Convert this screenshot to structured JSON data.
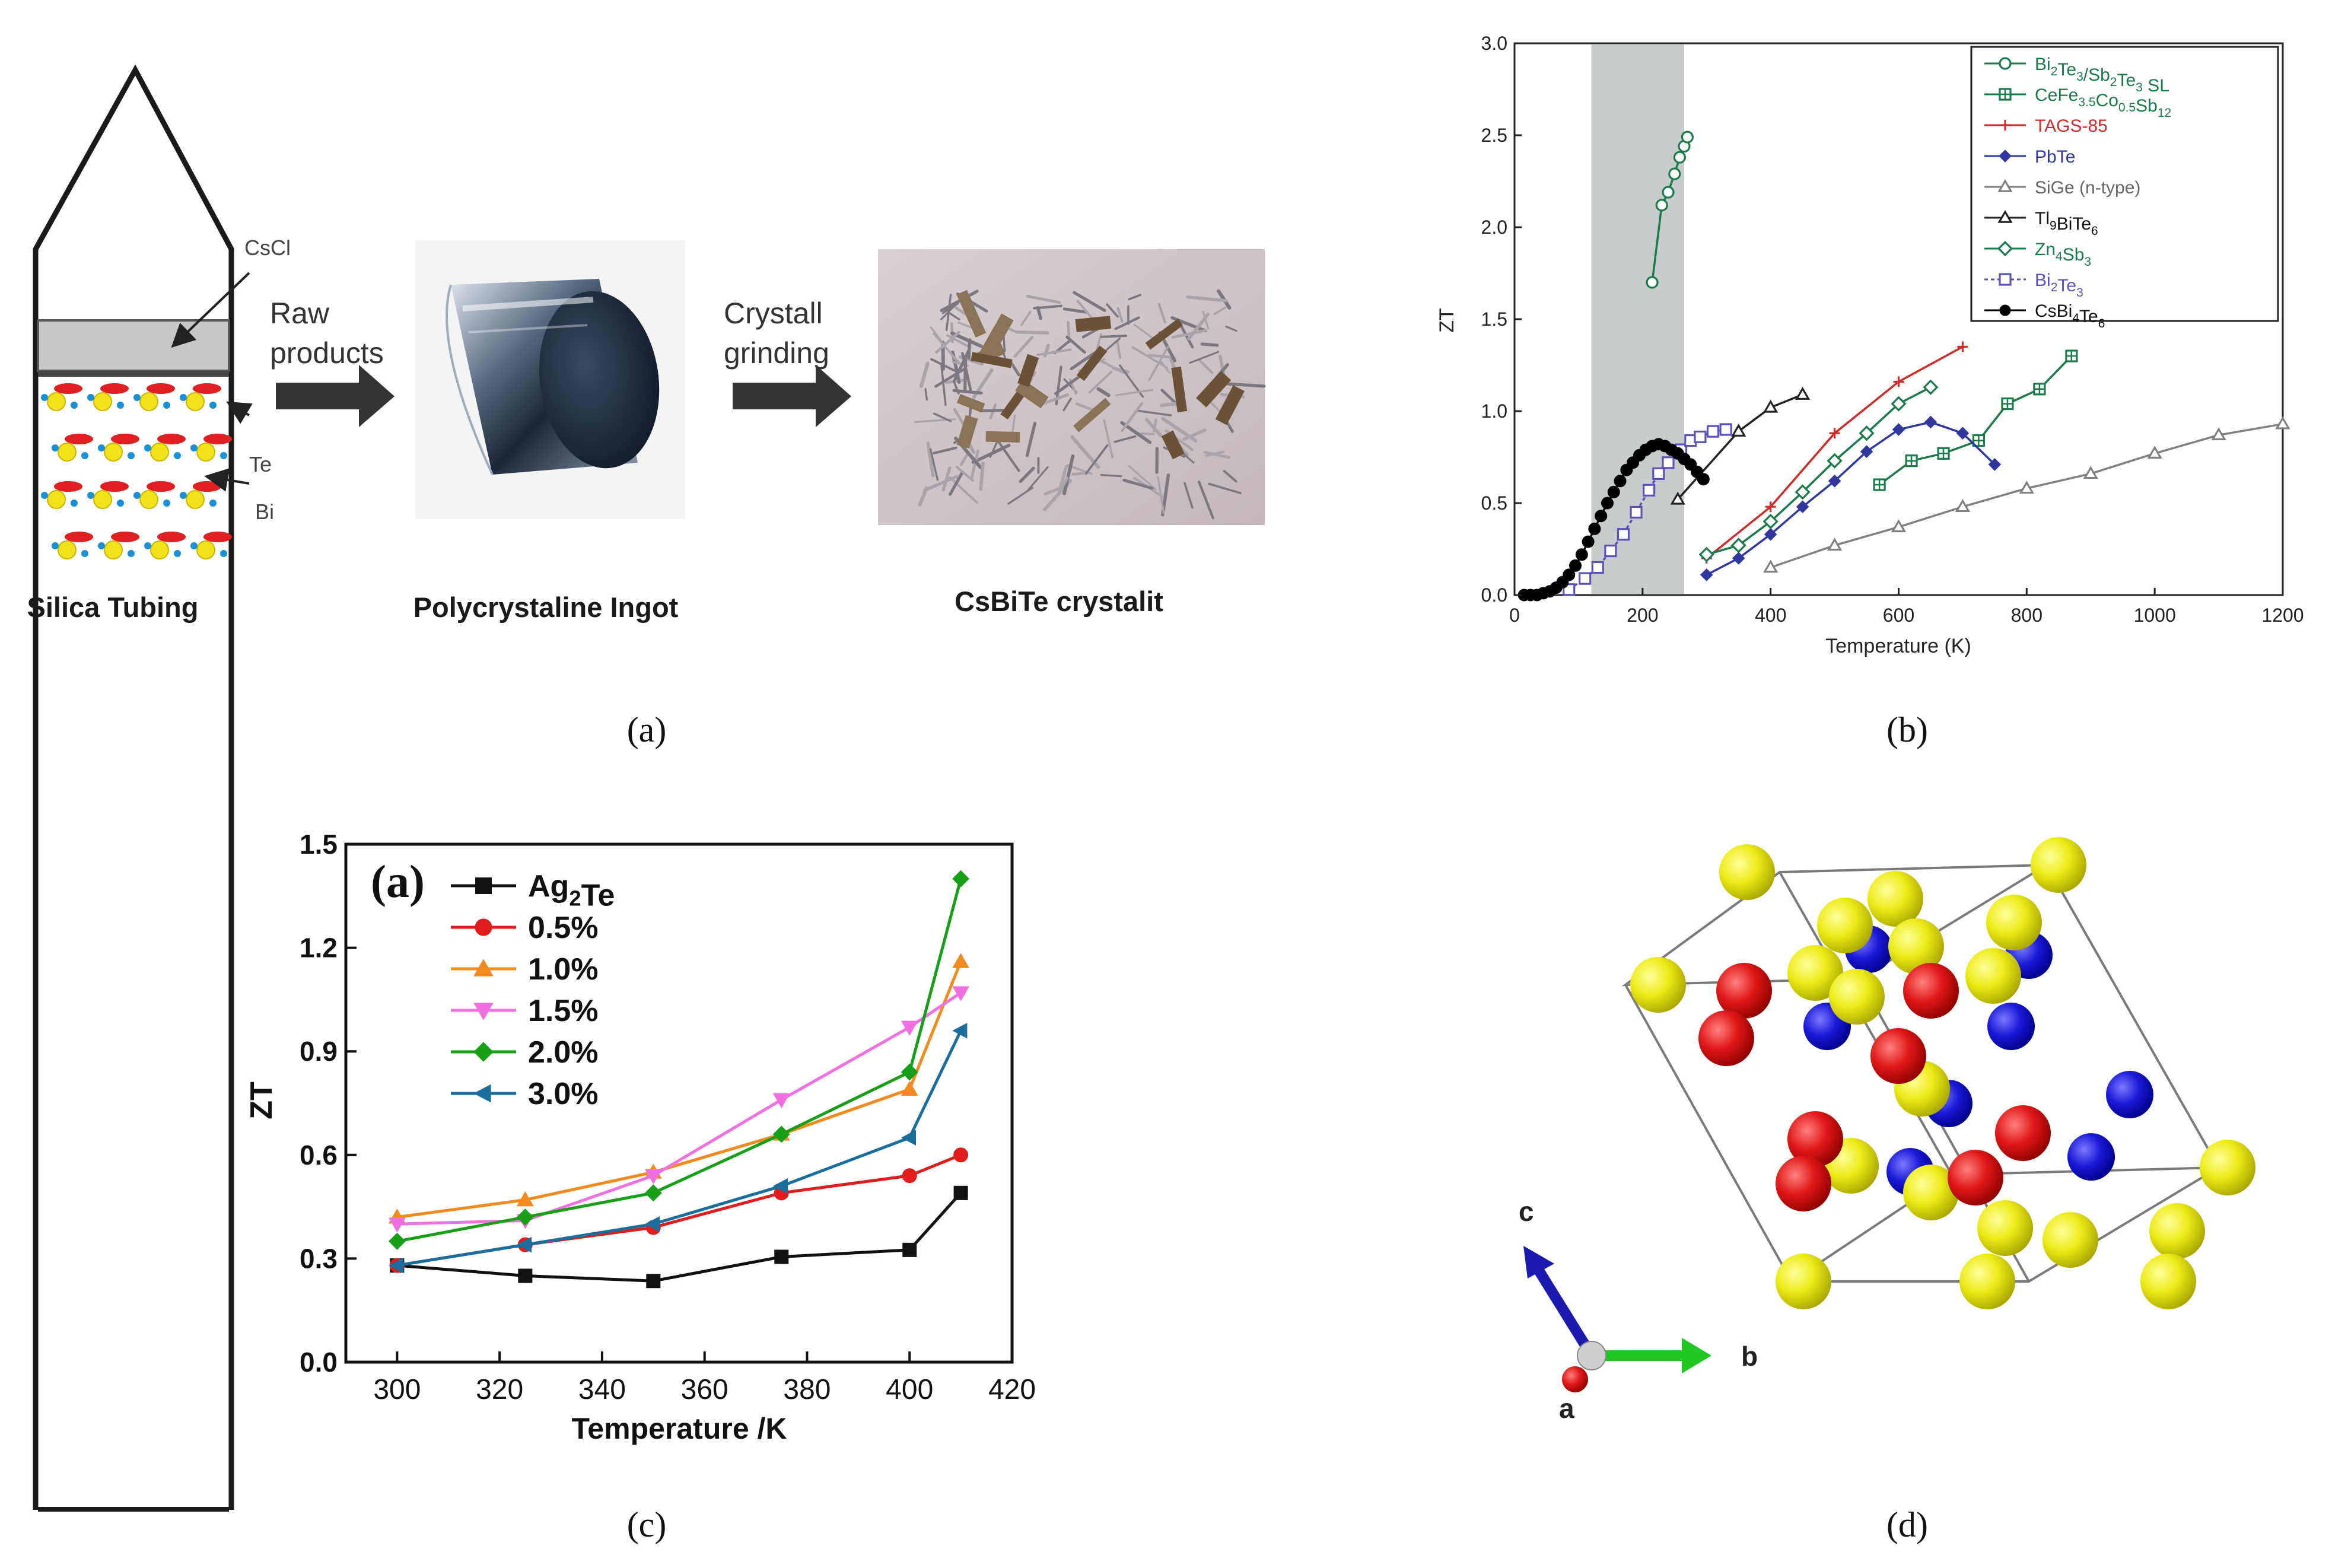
{
  "panel_labels": [
    "(a)",
    "(b)",
    "(c)",
    "(d)"
  ],
  "panel_a": {
    "texts": {
      "cscl": "CsCl",
      "te": "Te",
      "bi": "Bi",
      "arrow1_l1": "Raw",
      "arrow1_l2": "products",
      "arrow2_l1": "Crystall",
      "arrow2_l2": "grinding",
      "cap_tube": "Silica Tubing",
      "cap_ingot": "Polycrystaline Ingot",
      "cap_cryst": "CsBiTe crystalit"
    }
  },
  "panel_d": {
    "axis_labels": {
      "c": "c",
      "b": "b",
      "a": "a"
    }
  },
  "chart_data": [
    {
      "id": "b",
      "type": "line",
      "xlabel": "Temperature (K)",
      "ylabel": "ZT",
      "xlim": [
        0,
        1200
      ],
      "ylim": [
        0,
        3.0
      ],
      "xticks": [
        0,
        200,
        400,
        600,
        800,
        1000,
        1200
      ],
      "yticks": [
        0.0,
        0.5,
        1.0,
        1.5,
        2.0,
        2.5,
        3.0
      ],
      "shaded_region": [
        120,
        265
      ],
      "legend_position": "top-right",
      "series": [
        {
          "name": "Bi2Te3/Sb2Te3 SL",
          "color": "#1a7a4a",
          "marker": "circle-open",
          "points": [
            [
              215,
              1.7
            ],
            [
              230,
              2.12
            ],
            [
              240,
              2.19
            ],
            [
              250,
              2.29
            ],
            [
              258,
              2.38
            ],
            [
              265,
              2.44
            ],
            [
              270,
              2.49
            ]
          ]
        },
        {
          "name": "CeFe3.5Co0.5Sb12",
          "color": "#1a7a4a",
          "marker": "square-cross",
          "points": [
            [
              570,
              0.6
            ],
            [
              620,
              0.73
            ],
            [
              670,
              0.77
            ],
            [
              725,
              0.84
            ],
            [
              770,
              1.04
            ],
            [
              820,
              1.12
            ],
            [
              870,
              1.3
            ]
          ]
        },
        {
          "name": "TAGS-85",
          "color": "#d02b2b",
          "marker": "plus",
          "points": [
            [
              300,
              0.2
            ],
            [
              400,
              0.48
            ],
            [
              500,
              0.88
            ],
            [
              600,
              1.16
            ],
            [
              700,
              1.35
            ]
          ]
        },
        {
          "name": "PbTe",
          "color": "#3038a0",
          "marker": "diamond-filled",
          "points": [
            [
              300,
              0.11
            ],
            [
              350,
              0.2
            ],
            [
              400,
              0.33
            ],
            [
              450,
              0.48
            ],
            [
              500,
              0.62
            ],
            [
              550,
              0.78
            ],
            [
              600,
              0.9
            ],
            [
              650,
              0.94
            ],
            [
              700,
              0.88
            ],
            [
              750,
              0.71
            ]
          ]
        },
        {
          "name": "SiGe (n-type)",
          "color": "#808080",
          "marker": "triangle-open",
          "points": [
            [
              400,
              0.15
            ],
            [
              500,
              0.27
            ],
            [
              600,
              0.37
            ],
            [
              700,
              0.48
            ],
            [
              800,
              0.58
            ],
            [
              900,
              0.66
            ],
            [
              1000,
              0.77
            ],
            [
              1100,
              0.87
            ],
            [
              1200,
              0.93
            ]
          ]
        },
        {
          "name": "Tl9BiTe6",
          "color": "#222222",
          "marker": "triangle-open",
          "points": [
            [
              255,
              0.52
            ],
            [
              350,
              0.89
            ],
            [
              400,
              1.02
            ],
            [
              450,
              1.09
            ]
          ]
        },
        {
          "name": "Zn4Sb3",
          "color": "#1a7a4a",
          "marker": "diamond-open",
          "points": [
            [
              300,
              0.22
            ],
            [
              350,
              0.27
            ],
            [
              400,
              0.4
            ],
            [
              450,
              0.56
            ],
            [
              500,
              0.73
            ],
            [
              550,
              0.88
            ],
            [
              600,
              1.04
            ],
            [
              650,
              1.13
            ]
          ]
        },
        {
          "name": "Bi2Te3",
          "color": "#5a50c0",
          "marker": "square-open",
          "points": [
            [
              85,
              0.03
            ],
            [
              110,
              0.09
            ],
            [
              130,
              0.15
            ],
            [
              150,
              0.24
            ],
            [
              170,
              0.33
            ],
            [
              190,
              0.45
            ],
            [
              210,
              0.57
            ],
            [
              225,
              0.66
            ],
            [
              240,
              0.72
            ],
            [
              260,
              0.79
            ],
            [
              275,
              0.84
            ],
            [
              290,
              0.86
            ],
            [
              310,
              0.89
            ],
            [
              330,
              0.9
            ]
          ]
        },
        {
          "name": "CsBi4Te6",
          "color": "#000000",
          "marker": "circle-filled",
          "points": [
            [
              15,
              0.0
            ],
            [
              25,
              0.0
            ],
            [
              35,
              0.0
            ],
            [
              45,
              0.01
            ],
            [
              55,
              0.02
            ],
            [
              65,
              0.04
            ],
            [
              75,
              0.07
            ],
            [
              85,
              0.11
            ],
            [
              95,
              0.16
            ],
            [
              105,
              0.22
            ],
            [
              115,
              0.29
            ],
            [
              125,
              0.36
            ],
            [
              135,
              0.43
            ],
            [
              145,
              0.5
            ],
            [
              155,
              0.56
            ],
            [
              165,
              0.62
            ],
            [
              175,
              0.68
            ],
            [
              185,
              0.72
            ],
            [
              195,
              0.76
            ],
            [
              205,
              0.79
            ],
            [
              215,
              0.81
            ],
            [
              225,
              0.82
            ],
            [
              235,
              0.81
            ],
            [
              245,
              0.79
            ],
            [
              255,
              0.77
            ],
            [
              265,
              0.74
            ],
            [
              275,
              0.71
            ],
            [
              285,
              0.67
            ],
            [
              295,
              0.63
            ]
          ]
        }
      ]
    },
    {
      "id": "c",
      "type": "line",
      "panel_tag": "(a)",
      "xlabel": "Temperature /K",
      "ylabel": "ZT",
      "xlim": [
        290,
        420
      ],
      "ylim": [
        0.0,
        1.5
      ],
      "xticks": [
        300,
        320,
        340,
        360,
        380,
        400,
        420
      ],
      "yticks": [
        0.0,
        0.3,
        0.6,
        0.9,
        1.2,
        1.5
      ],
      "legend_position": "top-left",
      "x": [
        300,
        325,
        350,
        375,
        400,
        410
      ],
      "series": [
        {
          "name": "Ag2Te",
          "color": "#111111",
          "marker": "square",
          "values": [
            0.28,
            0.25,
            0.235,
            0.305,
            0.325,
            0.49
          ]
        },
        {
          "name": "0.5%",
          "color": "#e11c1c",
          "marker": "circle",
          "values": [
            0.28,
            0.34,
            0.39,
            0.49,
            0.54,
            0.6
          ]
        },
        {
          "name": "1.0%",
          "color": "#f28a1e",
          "marker": "triangle-up",
          "values": [
            0.42,
            0.47,
            0.55,
            0.66,
            0.79,
            1.16
          ]
        },
        {
          "name": "1.5%",
          "color": "#f070e0",
          "marker": "triangle-down",
          "values": [
            0.4,
            0.41,
            0.54,
            0.76,
            0.97,
            1.07
          ]
        },
        {
          "name": "2.0%",
          "color": "#17a017",
          "marker": "diamond",
          "values": [
            0.35,
            0.42,
            0.49,
            0.66,
            0.84,
            1.4
          ]
        },
        {
          "name": "3.0%",
          "color": "#1a6e9e",
          "marker": "triangle-left",
          "values": [
            0.28,
            0.34,
            0.4,
            0.51,
            0.65,
            0.96
          ]
        }
      ]
    }
  ]
}
